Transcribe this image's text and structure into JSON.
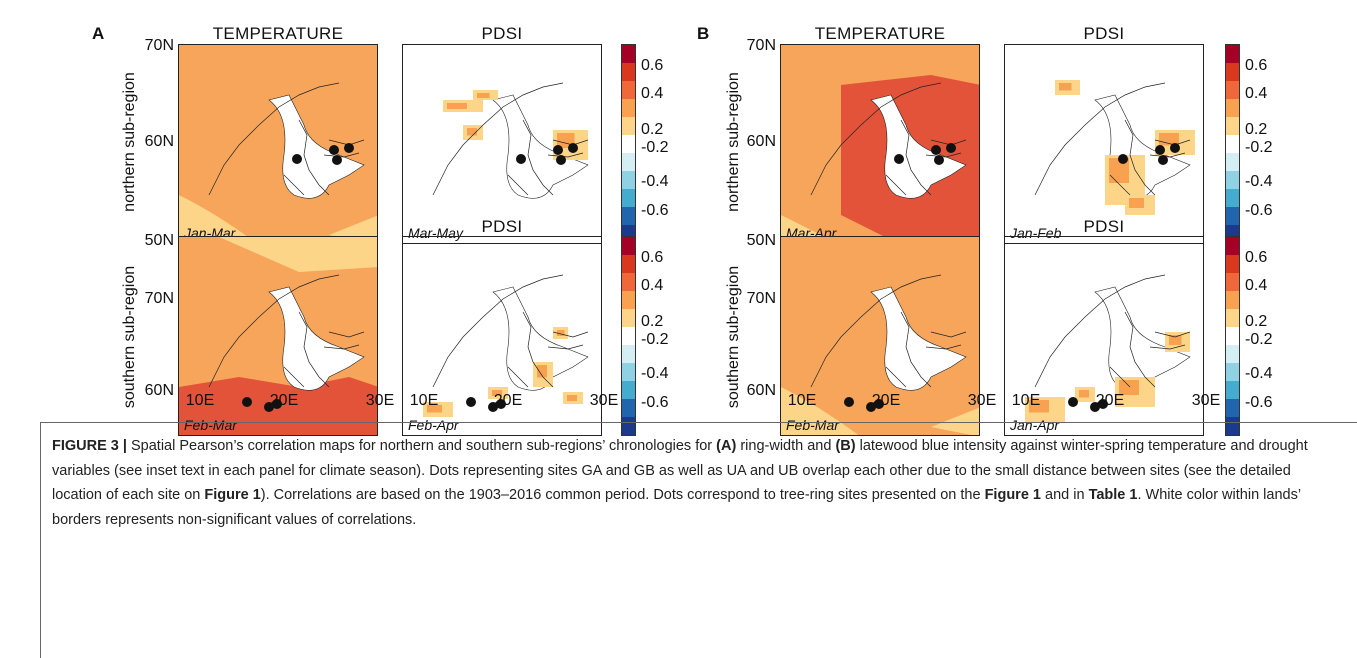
{
  "panel_letters": {
    "a": "A",
    "b": "B"
  },
  "titles": {
    "temperature": "TEMPERATURE",
    "pdsi": "PDSI"
  },
  "row_labels": {
    "north": "northern sub-region",
    "south": "southern sub-region"
  },
  "lat_ticks": [
    "70N",
    "60N",
    "50N"
  ],
  "lon_ticks": [
    "10E",
    "20E",
    "30E"
  ],
  "colorbar_ticks": [
    "0.6",
    "0.4",
    "0.2",
    "-0.2",
    "-0.4",
    "-0.6"
  ],
  "colorbar_colors": [
    "#a50026",
    "#d9381e",
    "#f0683a",
    "#f8a150",
    "#fcd589",
    "#ffffff",
    "#d4eef4",
    "#8fd2e4",
    "#45acd0",
    "#2166ac",
    "#1c3a8c"
  ],
  "seasons": {
    "a_north_temp": "Jan-Mar",
    "a_north_pdsi": "Mar-May",
    "a_south_temp": "Feb-Mar",
    "a_south_pdsi": "Feb-Apr",
    "b_north_temp": "Mar-Apr",
    "b_north_pdsi": "Jan-Feb",
    "b_south_temp": "Feb-Mar",
    "b_south_pdsi": "Jan-Apr"
  },
  "caption": {
    "fig_label": "FIGURE 3 |",
    "t1": " Spatial Pearson’s correlation maps for northern and southern sub-regions’ chronologies for ",
    "a": "(A)",
    "t2": " ring-width and ",
    "b": "(B)",
    "t3": " latewood blue intensity against winter-spring temperature and drought variables (see inset text in each panel for climate season). Dots representing sites GA and GB as well as UA and UB overlap each other due to the small distance between sites (see the detailed location of each site on ",
    "fig1": "Figure 1",
    "t4": "). Correlations are based on the 1903–2016 common period. Dots correspond to tree-ring sites presented on the ",
    "fig1b": "Figure 1",
    "t5": " and in ",
    "table1": "Table 1",
    "t6": ". White color within lands’ borders represents non-significant values of correlations."
  }
}
